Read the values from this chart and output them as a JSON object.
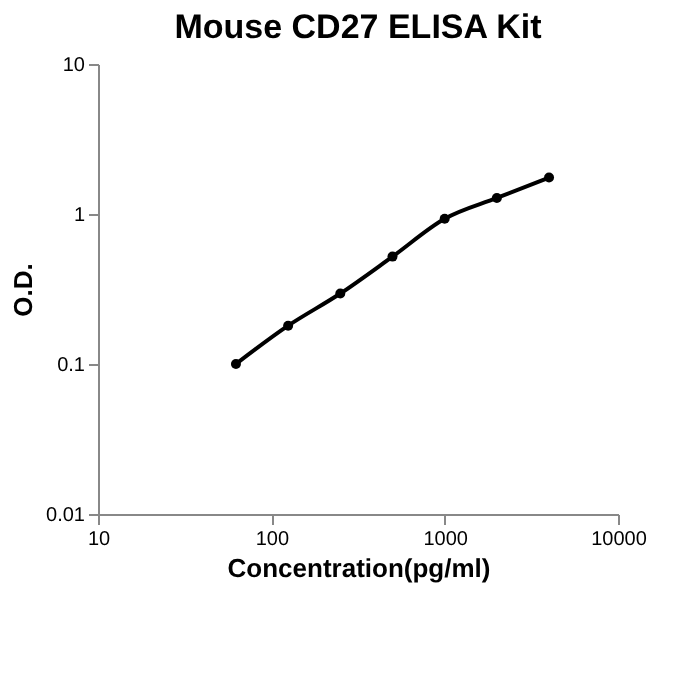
{
  "chart_data": {
    "type": "line",
    "title": "Mouse CD27 ELISA Kit",
    "xlabel": "Concentration(pg/ml)",
    "ylabel": "O.D.",
    "x": [
      62.5,
      125,
      250,
      500,
      1000,
      2000,
      4000
    ],
    "series": [
      {
        "color": "#000000",
        "values": [
          0.1,
          0.18,
          0.295,
          0.52,
          0.93,
          1.28,
          1.75
        ]
      }
    ],
    "log": "xy",
    "xlim": [
      10,
      10000
    ],
    "ylim": [
      0.01,
      10
    ],
    "xticks": [
      10,
      100,
      1000,
      10000
    ],
    "yticks": [
      0.01,
      0.1,
      1,
      10
    ],
    "grid": false,
    "marker": "circle",
    "line_style": "solid"
  }
}
